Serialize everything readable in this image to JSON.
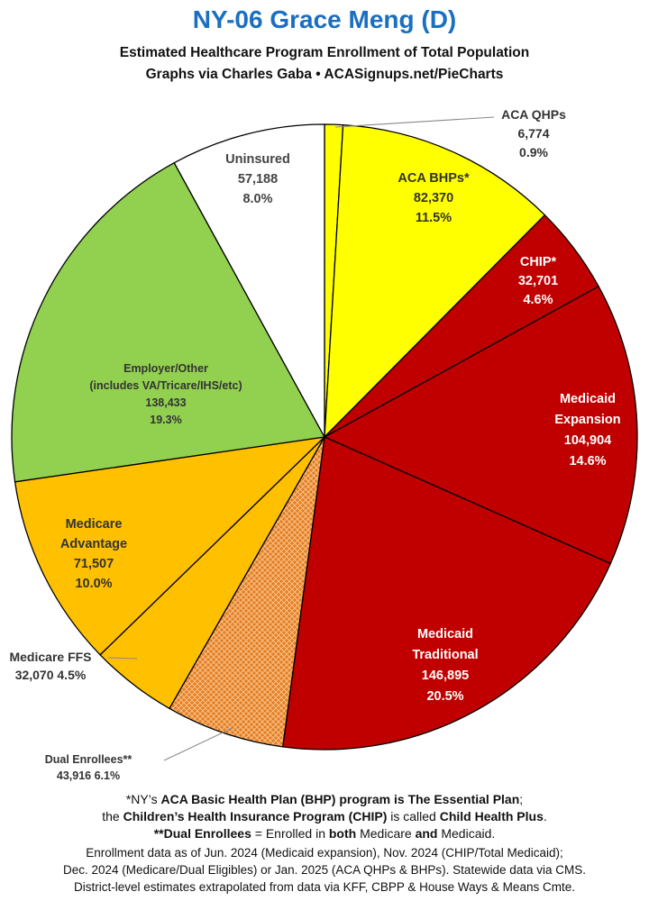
{
  "title": "NY-06 Grace Meng (D)",
  "subtitle_line1": "Estimated Healthcare Program Enrollment of Total Population",
  "subtitle_line2": "Graphs via Charles Gaba   •   ACASignups.net/PieCharts",
  "chart_data": {
    "type": "pie",
    "title": "NY-06 Grace Meng (D)",
    "slices": [
      {
        "name": "ACA QHPs",
        "value": 6774,
        "pct": "0.9%",
        "value_label": "6,774",
        "color": "#ffff00",
        "pattern": false
      },
      {
        "name": "ACA BHPs*",
        "value": 82370,
        "pct": "11.5%",
        "value_label": "82,370",
        "color": "#ffff00",
        "pattern": false
      },
      {
        "name": "CHIP*",
        "value": 32701,
        "pct": "4.6%",
        "value_label": "32,701",
        "color": "#c00000",
        "pattern": false
      },
      {
        "name": "Medicaid Expansion",
        "value": 104904,
        "pct": "14.6%",
        "value_label": "104,904",
        "color": "#c00000",
        "pattern": false
      },
      {
        "name": "Medicaid Traditional",
        "value": 146895,
        "pct": "20.5%",
        "value_label": "146,895",
        "color": "#c00000",
        "pattern": false
      },
      {
        "name": "Dual Enrollees**",
        "value": 43916,
        "pct": "6.1%",
        "value_label": "43,916",
        "color": "#e67e22",
        "pattern": true
      },
      {
        "name": "Medicare FFS",
        "value": 32070,
        "pct": "4.5%",
        "value_label": "32,070",
        "color": "#ffc000",
        "pattern": false
      },
      {
        "name": "Medicare Advantage",
        "value": 71507,
        "pct": "10.0%",
        "value_label": "71,507",
        "color": "#ffc000",
        "pattern": false
      },
      {
        "name": "Employer/Other (includes VA/Tricare/IHS/etc)",
        "value": 138433,
        "pct": "19.3%",
        "value_label": "138,433",
        "color": "#92d050",
        "pattern": false
      },
      {
        "name": "Uninsured",
        "value": 57188,
        "pct": "8.0%",
        "value_label": "57,188",
        "color": "#ffffff",
        "pattern": false
      }
    ]
  },
  "labels": {
    "aca_qhps": [
      "ACA QHPs",
      "6,774",
      "0.9%"
    ],
    "aca_bhps": [
      "ACA BHPs*",
      "82,370",
      "11.5%"
    ],
    "chip": [
      "CHIP*",
      "32,701",
      "4.6%"
    ],
    "medicaid_expansion": [
      "Medicaid",
      "Expansion",
      "104,904",
      "14.6%"
    ],
    "medicaid_traditional": [
      "Medicaid",
      "Traditional",
      "146,895",
      "20.5%"
    ],
    "dual": [
      "Dual Enrollees**",
      "43,916 6.1%"
    ],
    "medicare_ffs": [
      "Medicare FFS",
      "32,070 4.5%"
    ],
    "medicare_adv": [
      "Medicare",
      "Advantage",
      "71,507",
      "10.0%"
    ],
    "employer": [
      "Employer/Other",
      "(includes VA/Tricare/IHS/etc)",
      "138,433",
      "19.3%"
    ],
    "uninsured": [
      "Uninsured",
      "57,188",
      "8.0%"
    ]
  },
  "footnotes": {
    "line1_a": "*NY’s ",
    "line1_b": "ACA Basic Health Plan (BHP) program is The Essential Plan",
    "line1_c": ";",
    "line2_a": "the ",
    "line2_b": "Children’s Health Insurance Program (CHIP)",
    "line2_c": " is called ",
    "line2_d": "Child Health Plus",
    "line2_e": ".",
    "line3_a": "**Dual Enrollees",
    "line3_b": " = Enrolled in ",
    "line3_c": "both",
    "line3_d": " Medicare ",
    "line3_e": "and",
    "line3_f": " Medicaid.",
    "source1": "Enrollment data as of Jun. 2024 (Medicaid expansion), Nov. 2024 (CHIP/Total Medicaid);",
    "source2": "Dec. 2024 (Medicare/Dual Eligibles) or Jan. 2025 (ACA QHPs & BHPs). Statewide data via CMS.",
    "source3": "District-level estimates extrapolated from data via KFF, CBPP & House Ways & Means Cmte."
  }
}
